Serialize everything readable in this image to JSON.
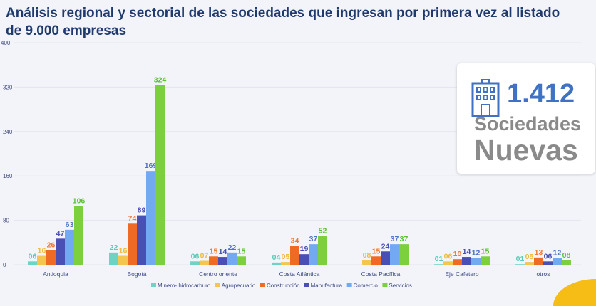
{
  "title": "Análisis regional y sectorial de las sociedades que ingresan por primera vez al listado de 9.000 empresas",
  "card": {
    "value": "1.412",
    "line1": "Sociedades",
    "line2": "Nuevas",
    "icon": "building-icon",
    "color": "#3f72c4"
  },
  "chart_data": {
    "type": "bar",
    "title": "",
    "xlabel": "",
    "ylabel": "",
    "ylim": [
      0,
      400
    ],
    "yticks": [
      0,
      80,
      160,
      240,
      320,
      400
    ],
    "grid": true,
    "legend": "bottom",
    "categories": [
      "Antioquia",
      "Bogotá",
      "Centro oriente",
      "Costa Atlántica",
      "Costa Pacífica",
      "Eje Cafetero",
      "otros"
    ],
    "series": [
      {
        "name": "Minero- hidrocarburo",
        "color": "#6fd3c4",
        "values": [
          6,
          22,
          6,
          4,
          0,
          1,
          1
        ],
        "labels": [
          "06",
          "22",
          "06",
          "04",
          "",
          "01",
          "01"
        ]
      },
      {
        "name": "Agropecuario",
        "color": "#f5c64f",
        "values": [
          16,
          16,
          7,
          5,
          8,
          6,
          5
        ],
        "labels": [
          "16",
          "16",
          "07",
          "05",
          "08",
          "06",
          "05"
        ]
      },
      {
        "name": "Construcción",
        "color": "#ee6a25",
        "values": [
          26,
          74,
          15,
          34,
          15,
          10,
          13
        ],
        "labels": [
          "26",
          "74",
          "15",
          "34",
          "15",
          "10",
          "13"
        ]
      },
      {
        "name": "Manufactura",
        "color": "#4a4fb5",
        "values": [
          47,
          89,
          14,
          19,
          24,
          14,
          6
        ],
        "labels": [
          "47",
          "89",
          "14",
          "19",
          "24",
          "14",
          "06"
        ]
      },
      {
        "name": "Comercio",
        "color": "#72a9f0",
        "values": [
          63,
          169,
          22,
          37,
          37,
          12,
          12
        ],
        "labels": [
          "63",
          "169",
          "22",
          "37",
          "37",
          "12",
          "12"
        ]
      },
      {
        "name": "Servicios",
        "color": "#7ccf3d",
        "values": [
          106,
          324,
          15,
          52,
          37,
          15,
          8
        ],
        "labels": [
          "106",
          "324",
          "15",
          "52",
          "37",
          "15",
          "08"
        ]
      }
    ]
  }
}
